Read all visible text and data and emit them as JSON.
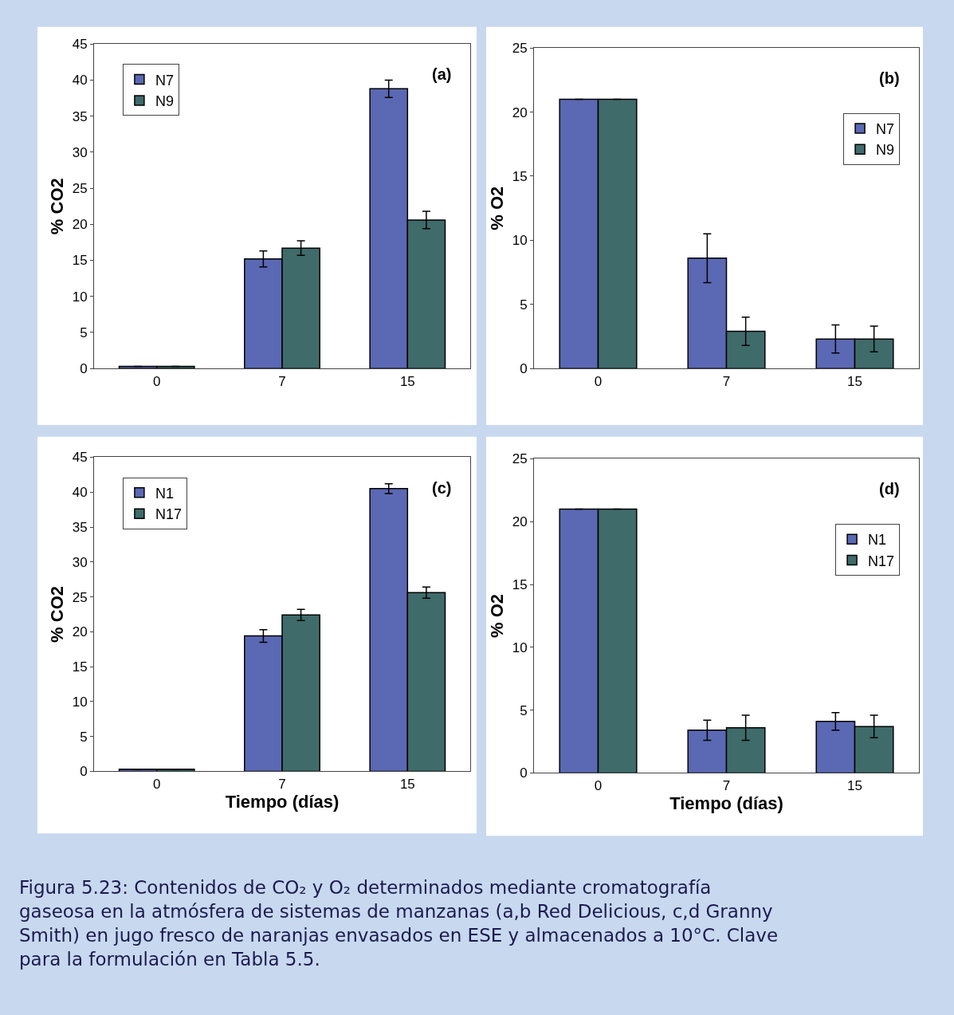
{
  "chart_data": [
    {
      "type": "bar",
      "ylabel": "% CO2",
      "categories": [
        "0",
        "7",
        "15"
      ],
      "ylim": [
        0,
        45
      ],
      "yticks": [
        0,
        5,
        10,
        15,
        20,
        25,
        30,
        35,
        40,
        45
      ],
      "legend": "top left",
      "annotations": [
        "(a)"
      ],
      "series": [
        {
          "name": "N7",
          "color": "#5b68b3",
          "values": [
            0.3,
            15.2,
            38.8
          ],
          "errors": [
            null,
            1.1,
            1.2
          ]
        },
        {
          "name": "N9",
          "color": "#3f6b6b",
          "values": [
            0.3,
            16.7,
            20.6
          ],
          "errors": [
            null,
            1.0,
            1.2
          ]
        }
      ]
    },
    {
      "type": "bar",
      "ylabel": "% O2",
      "categories": [
        "0",
        "7",
        "15"
      ],
      "ylim": [
        0,
        25
      ],
      "yticks": [
        0,
        5,
        10,
        15,
        20,
        25
      ],
      "legend": "top right",
      "annotations": [
        "(b)"
      ],
      "series": [
        {
          "name": "N7",
          "color": "#5b68b3",
          "values": [
            21,
            8.6,
            2.3
          ],
          "errors": [
            null,
            1.9,
            1.1
          ]
        },
        {
          "name": "N9",
          "color": "#3f6b6b",
          "values": [
            21,
            2.9,
            2.3
          ],
          "errors": [
            null,
            1.1,
            1.0
          ]
        }
      ]
    },
    {
      "type": "bar",
      "ylabel": "% CO2",
      "xlabel": "Tiempo (días)",
      "categories": [
        "0",
        "7",
        "15"
      ],
      "ylim": [
        0,
        45
      ],
      "yticks": [
        0,
        5,
        10,
        15,
        20,
        25,
        30,
        35,
        40,
        45
      ],
      "legend": "top left",
      "annotations": [
        "(c)"
      ],
      "series": [
        {
          "name": "N1",
          "color": "#5b68b3",
          "values": [
            0.3,
            19.4,
            40.5
          ],
          "errors": [
            null,
            0.9,
            0.7
          ]
        },
        {
          "name": "N17",
          "color": "#3f6b6b",
          "values": [
            0.3,
            22.4,
            25.6
          ],
          "errors": [
            null,
            0.8,
            0.8
          ]
        }
      ]
    },
    {
      "type": "bar",
      "ylabel": "% O2",
      "xlabel": "Tiempo (días)",
      "categories": [
        "0",
        "7",
        "15"
      ],
      "ylim": [
        0,
        25
      ],
      "yticks": [
        0,
        5,
        10,
        15,
        20,
        25
      ],
      "legend": "top right",
      "annotations": [
        "(d)",
        "Figura 5.23: Contenidos de CO₂ y O₂ determinados mediante cromatografía gaseosa en la atmósfera de sistemas de manzanas (a,b Red Delicious, c,d Granny Smith) en jugo fresco de naranjas envasados en ESE y almacenados a 10°C. Clave para la formulación en Tabla 5.5."
      ],
      "series": [
        {
          "name": "N1",
          "color": "#5b68b3",
          "values": [
            21,
            3.4,
            4.1
          ],
          "errors": [
            null,
            0.8,
            0.7
          ]
        },
        {
          "name": "N17",
          "color": "#3f6b6b",
          "values": [
            21,
            3.6,
            3.7
          ],
          "errors": [
            null,
            1.0,
            0.9
          ]
        }
      ]
    }
  ]
}
